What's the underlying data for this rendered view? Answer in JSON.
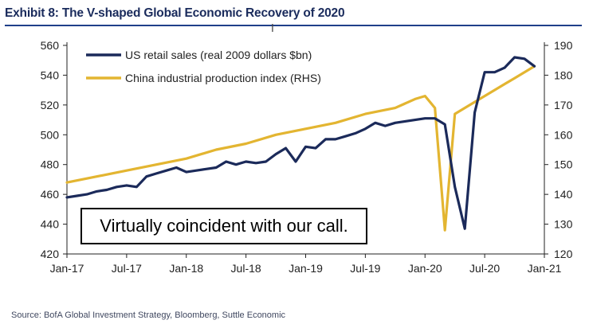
{
  "header": {
    "title": "Exhibit 8: The V-shaped Global Economic Recovery of 2020"
  },
  "cursor_glyph": "I",
  "annotation": "Virtually coincident with our call.",
  "source": "Source: BofA Global Investment Strategy, Bloomberg, Suttle Economic",
  "colors": {
    "us_series": "#1b2a5a",
    "china_series": "#e3b531",
    "axis": "#222222",
    "title": "#1a2b5c"
  },
  "chart_data": {
    "type": "line",
    "x_ticks": [
      "Jan-17",
      "Jul-17",
      "Jan-18",
      "Jul-18",
      "Jan-19",
      "Jul-19",
      "Jan-20",
      "Jul-20",
      "Jan-21"
    ],
    "x_unit": "months since Jan-17",
    "xlim": [
      0,
      48
    ],
    "y_left": {
      "ylim": [
        420,
        560
      ],
      "ticks": [
        420,
        440,
        460,
        480,
        500,
        520,
        540,
        560
      ]
    },
    "y_right": {
      "ylim": [
        120,
        190
      ],
      "ticks": [
        120,
        130,
        140,
        150,
        160,
        170,
        180,
        190
      ]
    },
    "legend_position": "top-left",
    "series": [
      {
        "name": "US retail sales (real 2009 dollars $bn)",
        "axis": "left",
        "color": "#1b2a5a",
        "points": [
          [
            0,
            458
          ],
          [
            1,
            459
          ],
          [
            2,
            460
          ],
          [
            3,
            462
          ],
          [
            4,
            463
          ],
          [
            5,
            465
          ],
          [
            6,
            466
          ],
          [
            7,
            465
          ],
          [
            8,
            472
          ],
          [
            9,
            474
          ],
          [
            10,
            476
          ],
          [
            11,
            478
          ],
          [
            12,
            475
          ],
          [
            13,
            476
          ],
          [
            14,
            477
          ],
          [
            15,
            478
          ],
          [
            16,
            482
          ],
          [
            17,
            480
          ],
          [
            18,
            482
          ],
          [
            19,
            481
          ],
          [
            20,
            482
          ],
          [
            21,
            487
          ],
          [
            22,
            491
          ],
          [
            23,
            482
          ],
          [
            24,
            492
          ],
          [
            25,
            491
          ],
          [
            26,
            497
          ],
          [
            27,
            497
          ],
          [
            28,
            499
          ],
          [
            29,
            501
          ],
          [
            30,
            504
          ],
          [
            31,
            508
          ],
          [
            32,
            506
          ],
          [
            33,
            508
          ],
          [
            34,
            509
          ],
          [
            35,
            510
          ],
          [
            36,
            511
          ],
          [
            37,
            511
          ],
          [
            38,
            507
          ],
          [
            39,
            465
          ],
          [
            40,
            437
          ],
          [
            41,
            515
          ],
          [
            42,
            542
          ],
          [
            43,
            542
          ],
          [
            44,
            545
          ],
          [
            45,
            552
          ],
          [
            46,
            551
          ],
          [
            47,
            546
          ]
        ]
      },
      {
        "name": "China industrial production index (RHS)",
        "axis": "right",
        "color": "#e3b531",
        "points": [
          [
            0,
            144
          ],
          [
            3,
            146
          ],
          [
            6,
            148
          ],
          [
            9,
            150
          ],
          [
            12,
            152
          ],
          [
            15,
            155
          ],
          [
            18,
            157
          ],
          [
            21,
            160
          ],
          [
            24,
            162
          ],
          [
            27,
            164
          ],
          [
            30,
            167
          ],
          [
            33,
            169
          ],
          [
            35,
            172
          ],
          [
            36,
            173
          ],
          [
            37,
            169
          ],
          [
            38,
            128
          ],
          [
            39,
            167
          ],
          [
            41,
            171
          ],
          [
            43,
            175
          ],
          [
            45,
            179
          ],
          [
            47,
            183
          ]
        ]
      }
    ]
  }
}
